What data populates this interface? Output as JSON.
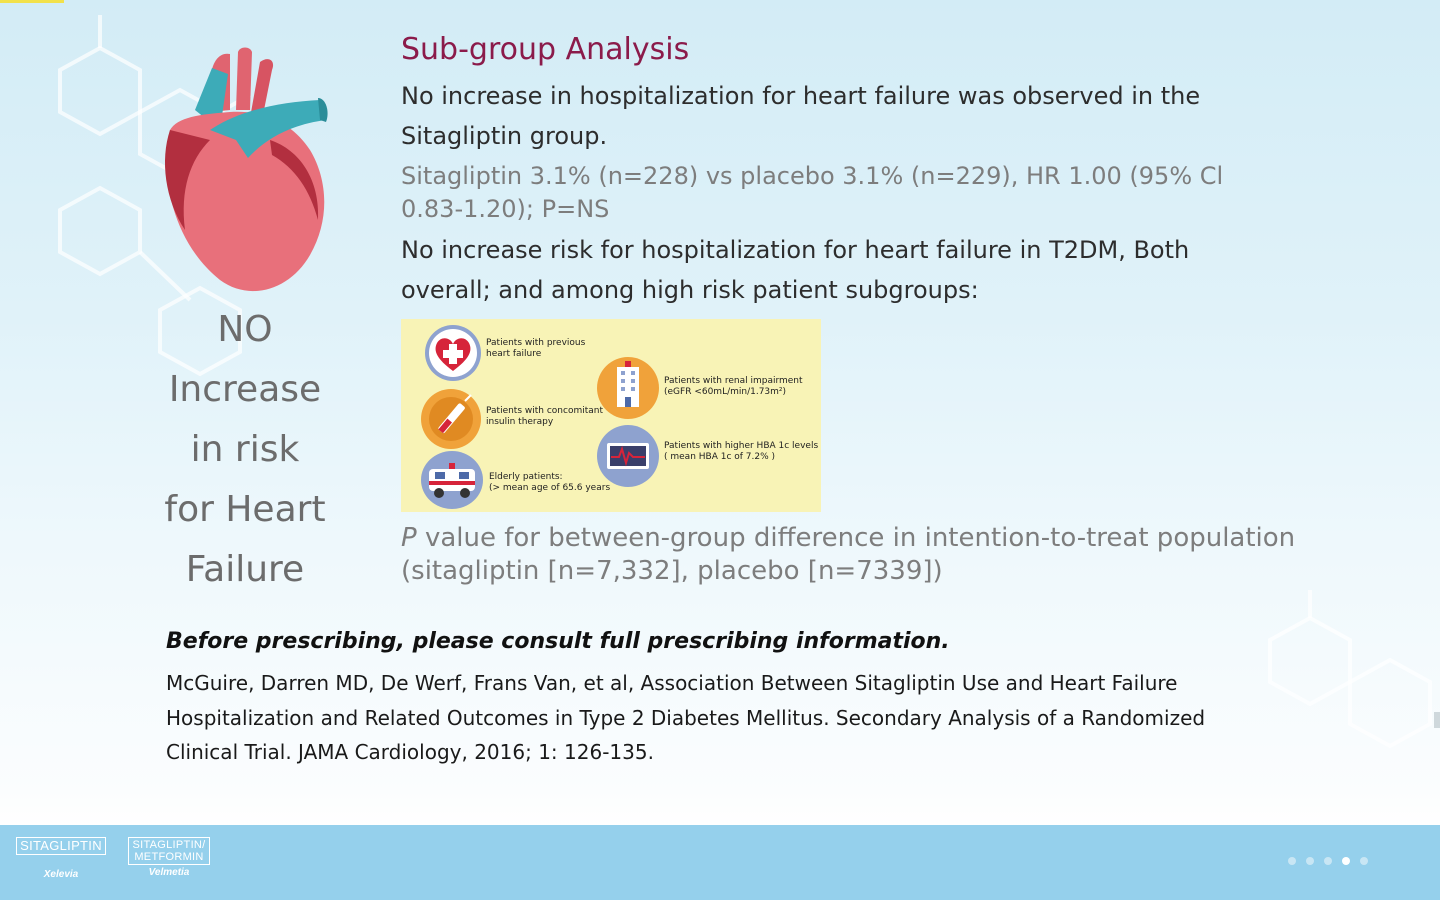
{
  "side_title": {
    "lines": [
      "NO",
      "Increase",
      "in risk",
      "for Heart",
      "Failure"
    ]
  },
  "main": {
    "heading": "Sub-group Analysis",
    "para1": "No increase in hospitalization for heart failure was observed in the Sitagliptin group.",
    "para2": "Sitagliptin 3.1% (n=228) vs placebo 3.1% (n=229), HR 1.00 (95% Cl 0.83-1.20); P=NS",
    "para3": "No increase risk for hospitalization for heart failure in T2DM, Both overall; and among high risk patient subgroups:"
  },
  "infographic": {
    "items": [
      {
        "line1": "Patients with previous",
        "line2": "heart failure",
        "icon": "heart-cross-icon"
      },
      {
        "line1": "Patients with concomitant",
        "line2": "insulin therapy",
        "icon": "syringe-icon"
      },
      {
        "line1": "Elderly patients:",
        "line2": "(> mean age of 65.6 years",
        "icon": "ambulance-icon"
      },
      {
        "line1": "Patients with renal impairment",
        "line2": "(eGFR <60mL/min/1.73m²)",
        "icon": "hospital-building-icon"
      },
      {
        "line1": "Patients with higher HBA 1c levels",
        "line2": "( mean HBA 1c of 7.2% )",
        "icon": "monitor-icon"
      }
    ],
    "colors": {
      "background": "#f8f3b6",
      "red": "#d6243a",
      "orange": "#f0a23a",
      "blue": "#8fa6d6"
    }
  },
  "footnote": {
    "p_italic": "P",
    "text": " value for between-group difference in intention-to-treat population (sitagliptin [n=7,332], placebo [n=7339])"
  },
  "refs": {
    "warning": "Before prescribing, please consult full prescribing information.",
    "citation": "McGuire, Darren MD, De Werf, Frans Van, et al, Association Between Sitagliptin Use and Heart Failure Hospitalization and Related Outcomes in Type 2 Diabetes Mellitus. Secondary Analysis of a Randomized Clinical Trial. JAMA Cardiology, 2016; 1: 126-135."
  },
  "footer": {
    "brand1": {
      "box": "SITAGLIPTIN",
      "sub": "Xelevia"
    },
    "brand2": {
      "box_line1": "SITAGLIPTIN/",
      "box_line2": "METFORMIN",
      "sub": "Velmetia"
    },
    "page_count": 5,
    "active_page": 4
  }
}
